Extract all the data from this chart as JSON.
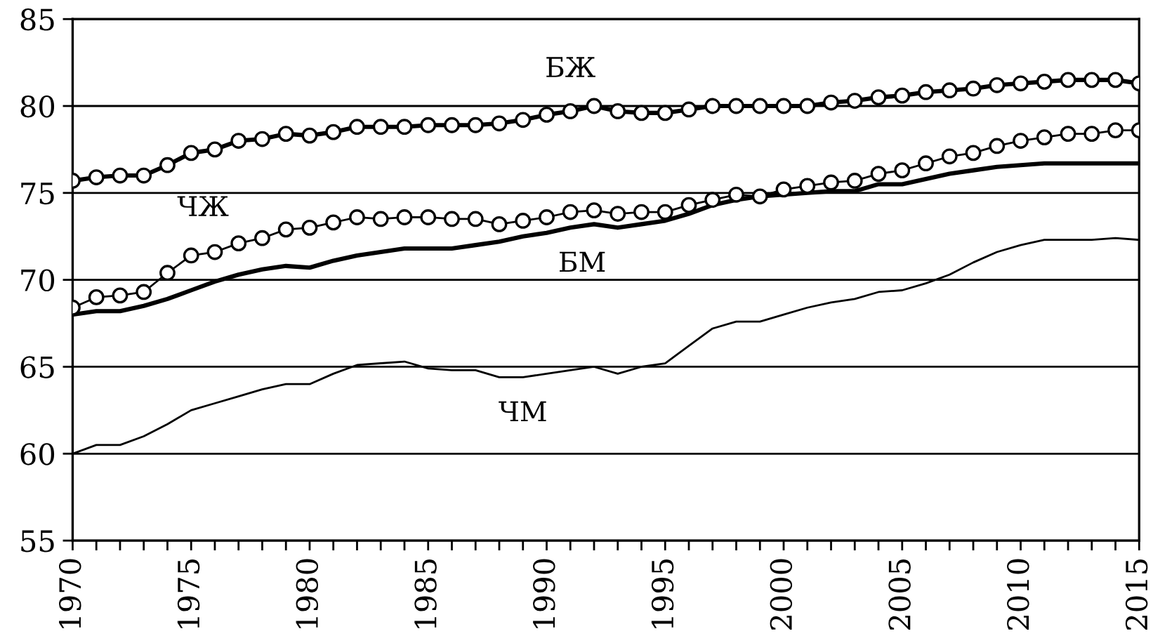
{
  "chart_data": {
    "type": "line",
    "x": [
      1970,
      1971,
      1972,
      1973,
      1974,
      1975,
      1976,
      1977,
      1978,
      1979,
      1980,
      1981,
      1982,
      1983,
      1984,
      1985,
      1986,
      1987,
      1988,
      1989,
      1990,
      1991,
      1992,
      1993,
      1994,
      1995,
      1996,
      1997,
      1998,
      1999,
      2000,
      2001,
      2002,
      2003,
      2004,
      2005,
      2006,
      2007,
      2008,
      2009,
      2010,
      2011,
      2012,
      2013,
      2014,
      2015
    ],
    "series": [
      {
        "name": "БЖ",
        "color": "#000000",
        "marker": "circle",
        "values": [
          75.7,
          75.9,
          76.0,
          76.0,
          76.6,
          77.3,
          77.5,
          78.0,
          78.1,
          78.4,
          78.3,
          78.5,
          78.8,
          78.8,
          78.8,
          78.9,
          78.9,
          78.9,
          79.0,
          79.2,
          79.5,
          79.7,
          80.0,
          79.7,
          79.6,
          79.6,
          79.8,
          80.0,
          80.0,
          80.0,
          80.0,
          80.0,
          80.2,
          80.3,
          80.5,
          80.6,
          80.8,
          80.9,
          81.0,
          81.2,
          81.3,
          81.4,
          81.5,
          81.5,
          81.5,
          81.3
        ]
      },
      {
        "name": "ЧЖ",
        "color": "#000000",
        "marker": "circle",
        "values": [
          68.4,
          69.0,
          69.1,
          69.3,
          70.4,
          71.4,
          71.6,
          72.1,
          72.4,
          72.9,
          73.0,
          73.3,
          73.6,
          73.5,
          73.6,
          73.6,
          73.5,
          73.5,
          73.2,
          73.4,
          73.6,
          73.9,
          74.0,
          73.8,
          73.9,
          73.9,
          74.3,
          74.6,
          74.9,
          74.8,
          75.2,
          75.4,
          75.6,
          75.7,
          76.1,
          76.3,
          76.7,
          77.1,
          77.3,
          77.7,
          78.0,
          78.2,
          78.4,
          78.4,
          78.6,
          78.6
        ]
      },
      {
        "name": "БМ",
        "color": "#000000",
        "marker": "none",
        "values": [
          68.0,
          68.2,
          68.2,
          68.5,
          68.9,
          69.4,
          69.9,
          70.3,
          70.6,
          70.8,
          70.7,
          71.1,
          71.4,
          71.6,
          71.8,
          71.8,
          71.8,
          72.0,
          72.2,
          72.5,
          72.7,
          73.0,
          73.2,
          73.0,
          73.2,
          73.4,
          73.8,
          74.3,
          74.6,
          74.8,
          74.9,
          75.0,
          75.1,
          75.1,
          75.5,
          75.5,
          75.8,
          76.1,
          76.3,
          76.5,
          76.6,
          76.7,
          76.7,
          76.7,
          76.7,
          76.7
        ]
      },
      {
        "name": "ЧМ",
        "color": "#000000",
        "marker": "none",
        "values": [
          60.0,
          60.5,
          60.5,
          61.0,
          61.7,
          62.5,
          62.9,
          63.3,
          63.7,
          64.0,
          64.0,
          64.6,
          65.1,
          65.2,
          65.3,
          64.9,
          64.8,
          64.8,
          64.4,
          64.4,
          64.6,
          64.8,
          65.0,
          64.6,
          65.0,
          65.2,
          66.2,
          67.2,
          67.6,
          67.6,
          68.0,
          68.4,
          68.7,
          68.9,
          69.3,
          69.4,
          69.8,
          70.3,
          71.0,
          71.6,
          72.0,
          72.3,
          72.3,
          72.3,
          72.4,
          72.3
        ]
      }
    ],
    "xlim": [
      1970,
      2015
    ],
    "xticks": [
      1970,
      {
        "value": 1971,
        "label": null
      },
      {
        "value": 1972,
        "label": null
      },
      {
        "value": 1973,
        "label": null
      },
      {
        "value": 1974,
        "label": null
      },
      1975,
      {
        "value": 1976,
        "label": null
      },
      {
        "value": 1977,
        "label": null
      },
      {
        "value": 1978,
        "label": null
      },
      {
        "value": 1979,
        "label": null
      },
      1980,
      {
        "value": 1981,
        "label": null
      },
      {
        "value": 1982,
        "label": null
      },
      {
        "value": 1983,
        "label": null
      },
      {
        "value": 1984,
        "label": null
      },
      1985,
      {
        "value": 1986,
        "label": null
      },
      {
        "value": 1987,
        "label": null
      },
      {
        "value": 1988,
        "label": null
      },
      {
        "value": 1989,
        "label": null
      },
      1990,
      {
        "value": 1991,
        "label": null
      },
      {
        "value": 1992,
        "label": null
      },
      {
        "value": 1993,
        "label": null
      },
      {
        "value": 1994,
        "label": null
      },
      1995,
      {
        "value": 1996,
        "label": null
      },
      {
        "value": 1997,
        "label": null
      },
      {
        "value": 1998,
        "label": null
      },
      {
        "value": 1999,
        "label": null
      },
      2000,
      {
        "value": 2001,
        "label": null
      },
      {
        "value": 2002,
        "label": null
      },
      {
        "value": 2003,
        "label": null
      },
      {
        "value": 2004,
        "label": null
      },
      2005,
      {
        "value": 2006,
        "label": null
      },
      {
        "value": 2007,
        "label": null
      },
      {
        "value": 2008,
        "label": null
      },
      {
        "value": 2009,
        "label": null
      },
      2010,
      {
        "value": 2011,
        "label": null
      },
      {
        "value": 2012,
        "label": null
      },
      {
        "value": 2013,
        "label": null
      },
      {
        "value": 2014,
        "label": null
      },
      2015
    ],
    "ylim": [
      55,
      85
    ],
    "yticks": [
      55,
      60,
      65,
      70,
      75,
      80,
      85
    ],
    "grid": "y",
    "legend": false
  }
}
